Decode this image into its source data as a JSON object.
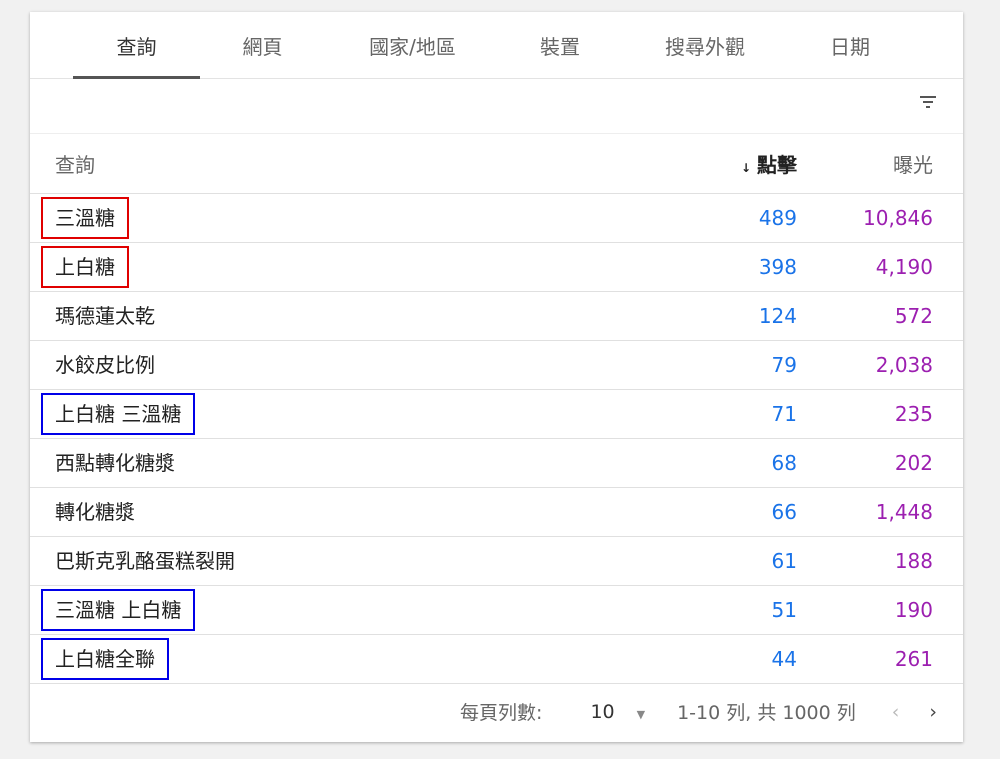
{
  "tabs": [
    "查詢",
    "網頁",
    "國家/地區",
    "裝置",
    "搜尋外觀",
    "日期"
  ],
  "active_tab": 0,
  "columns": {
    "query": "查詢",
    "clicks": "點擊",
    "impressions": "曝光",
    "sort_icon": "arrow-down-icon"
  },
  "rows": [
    {
      "query": "三溫糖",
      "clicks": "489",
      "impressions": "10,846",
      "highlight": "red"
    },
    {
      "query": "上白糖",
      "clicks": "398",
      "impressions": "4,190",
      "highlight": "red"
    },
    {
      "query": "瑪德蓮太乾",
      "clicks": "124",
      "impressions": "572",
      "highlight": ""
    },
    {
      "query": "水餃皮比例",
      "clicks": "79",
      "impressions": "2,038",
      "highlight": ""
    },
    {
      "query": "上白糖 三溫糖",
      "clicks": "71",
      "impressions": "235",
      "highlight": "blue"
    },
    {
      "query": "西點轉化糖漿",
      "clicks": "68",
      "impressions": "202",
      "highlight": ""
    },
    {
      "query": "轉化糖漿",
      "clicks": "66",
      "impressions": "1,448",
      "highlight": ""
    },
    {
      "query": "巴斯克乳酪蛋糕裂開",
      "clicks": "61",
      "impressions": "188",
      "highlight": ""
    },
    {
      "query": "三溫糖 上白糖",
      "clicks": "51",
      "impressions": "190",
      "highlight": "blue"
    },
    {
      "query": "上白糖全聯",
      "clicks": "44",
      "impressions": "261",
      "highlight": "blue"
    }
  ],
  "footer": {
    "rows_per_page_label": "每頁列數:",
    "rows_per_page": "10",
    "range": "1-10 列, 共 1000 列",
    "prev": "‹",
    "next": "›"
  },
  "colors": {
    "clicks": "#1a73e8",
    "impressions": "#9c1fb0",
    "highlight_red": "#e00000",
    "highlight_blue": "#0000e8"
  }
}
